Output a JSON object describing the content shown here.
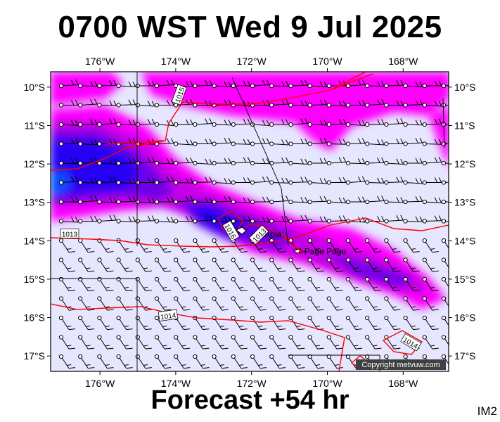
{
  "header": {
    "title": "0700 WST Wed 9 Jul 2025"
  },
  "footer": {
    "forecast": "Forecast +54 hr",
    "tag": "IM2"
  },
  "map": {
    "copyright": "Copyright metvuw.com",
    "lon_ticks": [
      "176°W",
      "174°W",
      "172°W",
      "170°W",
      "168°W"
    ],
    "lat_ticks": [
      "10°S",
      "11°S",
      "12°S",
      "13°S",
      "14°S",
      "15°S",
      "16°S",
      "17°S"
    ],
    "lon_range": [
      -177.3,
      -166.8
    ],
    "lat_range": [
      -9.6,
      -17.4
    ],
    "places": [
      {
        "name": "Apia",
        "lon": -171.75,
        "lat": -13.83
      },
      {
        "name": "Pago Pago",
        "lon": -170.7,
        "lat": -14.28
      }
    ],
    "isobar_labels": [
      {
        "text": "1013",
        "lon": -176.8,
        "lat": -13.82
      },
      {
        "text": "1014",
        "lon": -174.2,
        "lat": -15.95
      },
      {
        "text": "1014",
        "lon": -167.8,
        "lat": -16.65
      },
      {
        "text": "1015",
        "lon": -173.9,
        "lat": -10.2
      },
      {
        "text": "1016",
        "lon": -172.55,
        "lat": -13.75
      },
      {
        "text": "1013",
        "lon": -171.8,
        "lat": -13.85
      }
    ],
    "colors": {
      "background": "#e6e6ff",
      "rain_light": "#ff00ff",
      "rain_moderate": "#c800e6",
      "rain_heavy": "#6e00e6",
      "rain_very_heavy": "#2800f5",
      "rain_extreme": "#0050ff",
      "isobar": "#ff0000"
    }
  }
}
